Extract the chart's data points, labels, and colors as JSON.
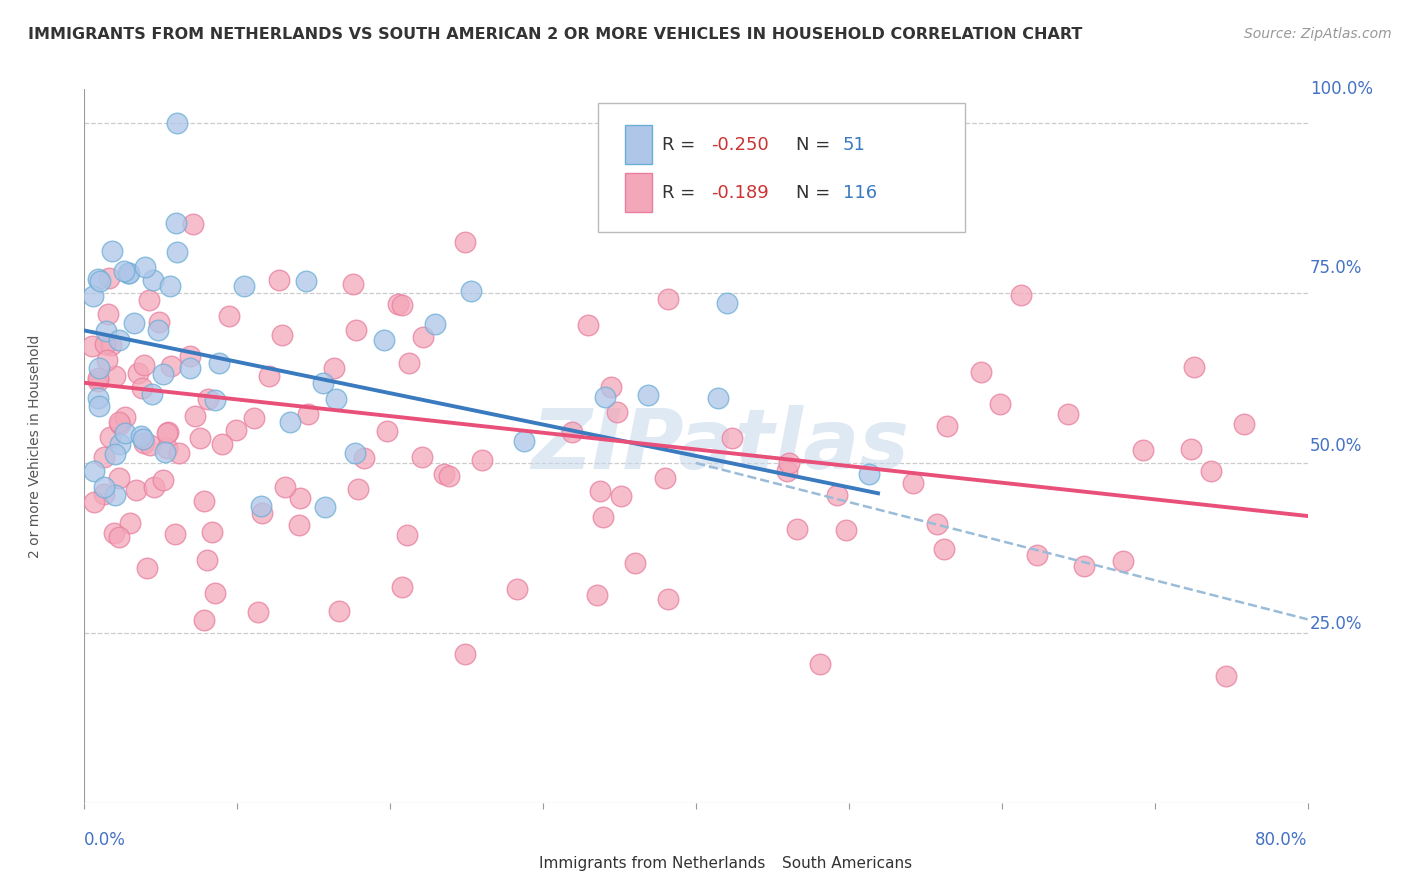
{
  "title": "IMMIGRANTS FROM NETHERLANDS VS SOUTH AMERICAN 2 OR MORE VEHICLES IN HOUSEHOLD CORRELATION CHART",
  "source": "Source: ZipAtlas.com",
  "ylabel": "2 or more Vehicles in Household",
  "xlim": [
    0.0,
    0.8
  ],
  "ylim": [
    0.0,
    1.05
  ],
  "netherlands_color": "#aec6e8",
  "netherlands_edge": "#6baed6",
  "south_american_color": "#f4a7b9",
  "south_american_edge": "#e87fa0",
  "netherlands_line_color": "#3a7abf",
  "south_american_line_color": "#e8507a",
  "dashed_line_color": "#9abcd8",
  "R_netherlands": -0.25,
  "N_netherlands": 51,
  "R_south_american": -0.189,
  "N_south_american": 116,
  "legend_label_netherlands": "Immigrants from Netherlands",
  "legend_label_south_american": "South Americans",
  "watermark": "ZIPatlas",
  "background_color": "#ffffff",
  "grid_color": "#cccccc",
  "axis_color": "#999999",
  "label_color": "#4472c4",
  "text_color": "#333333",
  "source_color": "#999999",
  "title_fontsize": 11.5,
  "tick_label_fontsize": 12,
  "legend_fontsize": 13,
  "ylabel_fontsize": 10,
  "watermark_fontsize": 60,
  "nl_line_start_y": 0.695,
  "nl_line_end_y": 0.455,
  "sa_line_start_y": 0.618,
  "sa_line_end_y": 0.422,
  "dash_line_start_x": 0.4,
  "dash_line_start_y": 0.5,
  "dash_line_end_x": 0.8,
  "dash_line_end_y": 0.27
}
